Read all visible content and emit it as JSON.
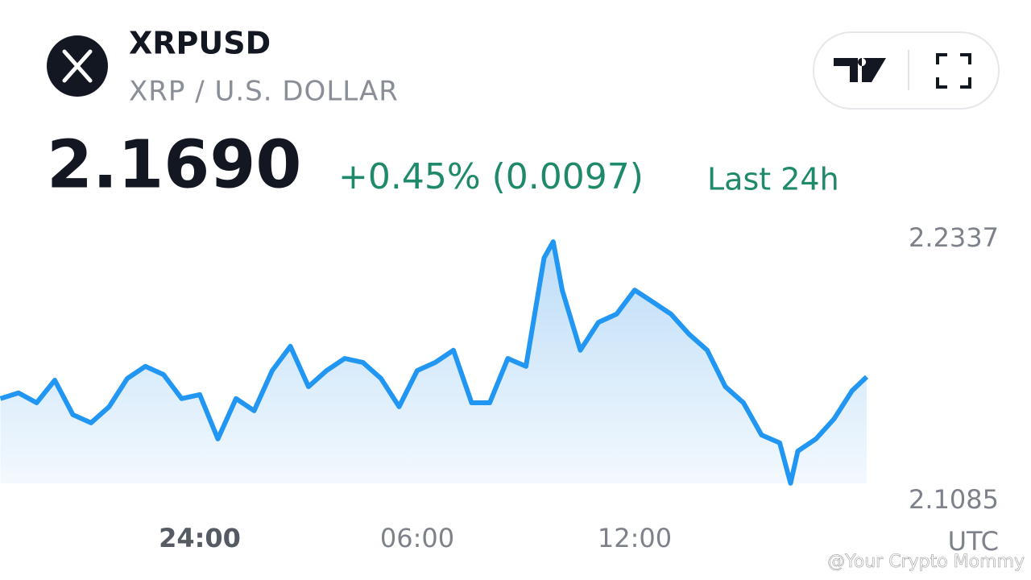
{
  "header": {
    "symbol": "XRPUSD",
    "name": "XRP / U.S. DOLLAR"
  },
  "quote": {
    "price": "2.1690",
    "change": "+0.45% (0.0097)",
    "period": "Last 24h"
  },
  "watermark": "@Your Crypto Mommy",
  "chart_data": {
    "type": "line",
    "color": "#2196f3",
    "x": [
      -5.5,
      -5,
      -4.5,
      -4,
      -3.5,
      -3,
      -2.5,
      -2,
      -1.5,
      -1,
      -0.5,
      0,
      0.5,
      1,
      1.5,
      2,
      2.5,
      3,
      3.5,
      4,
      4.5,
      5,
      5.5,
      6,
      6.5,
      7,
      7.5,
      8,
      8.5,
      9,
      9.5,
      9.75,
      10,
      10.5,
      11,
      11.5,
      12,
      12.5,
      13,
      13.5,
      14,
      14.5,
      15,
      15.5,
      16,
      16.3,
      16.5,
      17,
      17.5,
      18,
      18.4
    ],
    "values": [
      2.1575,
      2.1602,
      2.1555,
      2.1663,
      2.1498,
      2.1459,
      2.1536,
      2.1671,
      2.1729,
      2.169,
      2.1575,
      2.1594,
      2.1382,
      2.1575,
      2.1517,
      2.1709,
      2.1825,
      2.1632,
      2.1709,
      2.1767,
      2.1748,
      2.1671,
      2.1536,
      2.1709,
      2.1748,
      2.1806,
      2.1555,
      2.1555,
      2.1767,
      2.1729,
      2.2248,
      2.2325,
      2.2094,
      2.1806,
      2.194,
      2.1979,
      2.2094,
      2.2037,
      2.1979,
      2.1883,
      2.1806,
      2.1632,
      2.1555,
      2.1401,
      2.1363,
      2.117,
      2.1324,
      2.1382,
      2.1478,
      2.1613,
      2.1679
    ],
    "xlim": [
      -5.5,
      18.4
    ],
    "xticks": [
      {
        "value": 0,
        "label": "24:00"
      },
      {
        "value": 6,
        "label": "06:00"
      },
      {
        "value": 12,
        "label": "12:00"
      }
    ],
    "ylim": [
      2.1085,
      2.2337
    ],
    "yticks": [
      2.1085,
      2.2337
    ],
    "xlabel": "UTC",
    "grid": false
  }
}
